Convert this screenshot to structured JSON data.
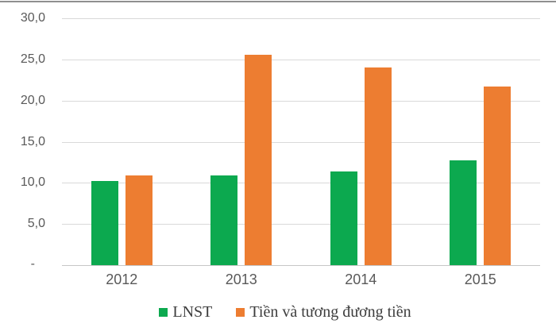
{
  "chart_data": {
    "type": "bar",
    "title": "",
    "xlabel": "",
    "ylabel": "",
    "categories": [
      "2012",
      "2013",
      "2014",
      "2015"
    ],
    "series": [
      {
        "name": "LNST",
        "color": "#0ca94f",
        "values": [
          10.2,
          10.9,
          11.4,
          12.7
        ]
      },
      {
        "name": "Tiền và tương đương tiền",
        "color": "#ed7d31",
        "values": [
          10.9,
          25.6,
          24.0,
          21.7
        ]
      }
    ],
    "ylim": [
      0,
      30
    ],
    "ytick_step": 5,
    "ytick_labels_top_to_bottom": [
      "30,0",
      "25,0",
      "20,0",
      "15,0",
      "10,0",
      "5,0",
      "-"
    ],
    "decimal_separator": ",",
    "grid": true,
    "legend_position": "bottom"
  },
  "colors": {
    "background": "#ffffff",
    "gridline": "#d9d9d9",
    "axis_line": "#c6c6c6",
    "axis_text": "#595959",
    "legend_text": "#3d3d3d",
    "top_border": "#8f8f8f"
  }
}
